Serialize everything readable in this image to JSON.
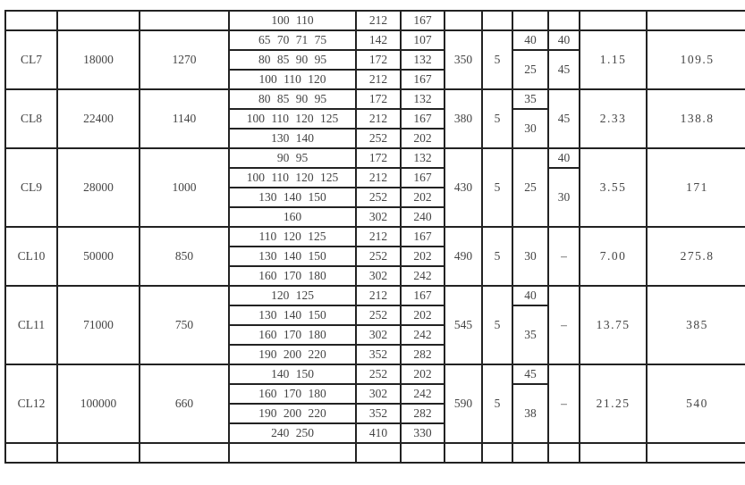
{
  "top_row": {
    "bore": "100 110",
    "D": "212",
    "D1": "167"
  },
  "groups": [
    {
      "model": "CL7",
      "torque": "18000",
      "speed": "1270",
      "sizes": [
        [
          "65 70 71 75",
          "142",
          "107"
        ],
        [
          "80 85 90 95",
          "172",
          "132"
        ],
        [
          "100 110 120",
          "212",
          "167"
        ]
      ],
      "B": "350",
      "gap": "5",
      "c1": [
        "40",
        "25"
      ],
      "c2": [
        "40",
        "45"
      ],
      "inertia": "1.15",
      "mass": "109.5"
    },
    {
      "model": "CL8",
      "torque": "22400",
      "speed": "1140",
      "sizes": [
        [
          "80 85 90 95",
          "172",
          "132"
        ],
        [
          "100 110 120 125",
          "212",
          "167"
        ],
        [
          "130 140",
          "252",
          "202"
        ]
      ],
      "B": "380",
      "gap": "5",
      "c1": [
        "35",
        "30"
      ],
      "c2": [
        "45"
      ],
      "inertia": "2.33",
      "mass": "138.8"
    },
    {
      "model": "CL9",
      "torque": "28000",
      "speed": "1000",
      "sizes": [
        [
          "90 95",
          "172",
          "132"
        ],
        [
          "100 110 120 125",
          "212",
          "167"
        ],
        [
          "130 140 150",
          "252",
          "202"
        ],
        [
          "160",
          "302",
          "240"
        ]
      ],
      "B": "430",
      "gap": "5",
      "c1": [
        "25"
      ],
      "c2": [
        "40",
        "30"
      ],
      "inertia": "3.55",
      "mass": "171"
    },
    {
      "model": "CL10",
      "torque": "50000",
      "speed": "850",
      "sizes": [
        [
          "110 120 125",
          "212",
          "167"
        ],
        [
          "130 140 150",
          "252",
          "202"
        ],
        [
          "160 170 180",
          "302",
          "242"
        ]
      ],
      "B": "490",
      "gap": "5",
      "c1": [
        "30"
      ],
      "c2": [
        "–"
      ],
      "inertia": "7.00",
      "mass": "275.8"
    },
    {
      "model": "CL11",
      "torque": "71000",
      "speed": "750",
      "sizes": [
        [
          "120 125",
          "212",
          "167"
        ],
        [
          "130 140 150",
          "252",
          "202"
        ],
        [
          "160 170 180",
          "302",
          "242"
        ],
        [
          "190 200 220",
          "352",
          "282"
        ]
      ],
      "B": "545",
      "gap": "5",
      "c1": [
        "40",
        "35"
      ],
      "c2": [
        "–"
      ],
      "inertia": "13.75",
      "mass": "385"
    },
    {
      "model": "CL12",
      "torque": "100000",
      "speed": "660",
      "sizes": [
        [
          "140 150",
          "252",
          "202"
        ],
        [
          "160 170 180",
          "302",
          "242"
        ],
        [
          "190 200 220",
          "352",
          "282"
        ],
        [
          "240 250",
          "410",
          "330"
        ]
      ],
      "B": "590",
      "gap": "5",
      "c1": [
        "45",
        "38"
      ],
      "c2": [
        "–"
      ],
      "inertia": "21.25",
      "mass": "540"
    }
  ]
}
